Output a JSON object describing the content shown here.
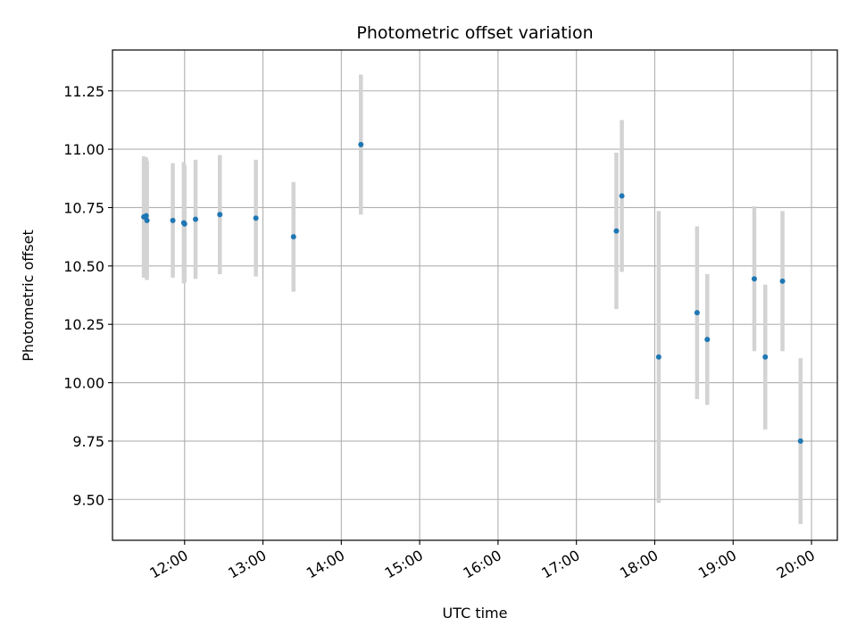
{
  "chart_data": {
    "type": "scatter",
    "title": "Photometric offset variation",
    "xlabel": "UTC time",
    "ylabel": "Photometric offset",
    "x_tick_labels": [
      "12:00",
      "13:00",
      "14:00",
      "15:00",
      "16:00",
      "17:00",
      "18:00",
      "19:00",
      "20:00"
    ],
    "x_ticks_hours": [
      12,
      13,
      14,
      15,
      16,
      17,
      18,
      19,
      20
    ],
    "y_ticks": [
      9.5,
      9.75,
      10.0,
      10.25,
      10.5,
      10.75,
      11.0,
      11.25
    ],
    "y_tick_labels": [
      "9.50",
      "9.75",
      "10.00",
      "10.25",
      "10.50",
      "10.75",
      "11.00",
      "11.25"
    ],
    "xlim_hours": [
      11.08,
      20.33
    ],
    "ylim": [
      9.325,
      11.425
    ],
    "grid": true,
    "point_color": "#1f77b4",
    "errorbar_color": "#d3d3d3",
    "series": [
      {
        "x_hours": [
          11.48,
          11.51,
          11.52,
          11.85,
          11.99,
          12.0,
          12.14,
          12.45,
          12.91,
          13.39,
          14.25,
          17.51,
          17.58,
          18.05,
          18.54,
          18.67,
          19.27,
          19.41,
          19.63,
          19.86
        ],
        "y": [
          10.71,
          10.715,
          10.695,
          10.695,
          10.685,
          10.68,
          10.7,
          10.72,
          10.705,
          10.625,
          11.02,
          10.65,
          10.8,
          10.11,
          10.3,
          10.185,
          10.445,
          10.11,
          10.435,
          9.75
        ],
        "yerr": [
          0.26,
          0.25,
          0.255,
          0.245,
          0.26,
          0.25,
          0.255,
          0.255,
          0.25,
          0.235,
          0.3,
          0.335,
          0.325,
          0.625,
          0.37,
          0.28,
          0.31,
          0.31,
          0.3,
          0.355
        ]
      }
    ]
  }
}
